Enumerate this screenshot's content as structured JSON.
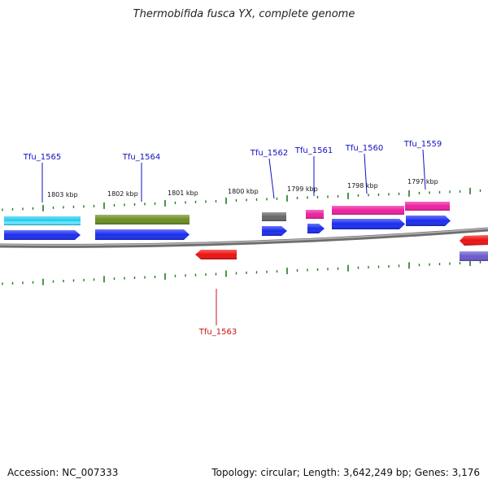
{
  "title": "Thermobifida fusca YX, complete genome",
  "footer": {
    "accession": "Accession: NC_007333",
    "summary": "Topology: circular; Length: 3,642,249 bp; Genes: 3,176"
  },
  "colors": {
    "backbone": "#8a8a8a",
    "tick": "#1f7a1f",
    "label_blue": "#1010c0",
    "label_red": "#d01010"
  },
  "kbp_labels": [
    {
      "text": "1803 kbp"
    },
    {
      "text": "1802 kbp"
    },
    {
      "text": "1801 kbp"
    },
    {
      "text": "1800 kbp"
    },
    {
      "text": "1799 kbp"
    },
    {
      "text": "1798 kbp"
    },
    {
      "text": "1797 kbp"
    }
  ],
  "genes": [
    {
      "name": "Tfu_1565",
      "strand": "+",
      "color": "#1a2cf0"
    },
    {
      "name": "Tfu_1564",
      "strand": "+",
      "color": "#1a2cf0"
    },
    {
      "name": "Tfu_1562",
      "strand": "+",
      "color": "#1a2cf0"
    },
    {
      "name": "Tfu_1561",
      "strand": "+",
      "color": "#1a2cf0"
    },
    {
      "name": "Tfu_1560",
      "strand": "+",
      "color": "#1a2cf0"
    },
    {
      "name": "Tfu_1559",
      "strand": "+",
      "color": "#1a2cf0"
    },
    {
      "name": "Tfu_1563",
      "strand": "-",
      "color": "#ee1111"
    }
  ],
  "category_bars": [
    {
      "gene": "Tfu_1565",
      "color": "#22c8f0"
    },
    {
      "gene": "Tfu_1564",
      "color": "#6b8e23"
    },
    {
      "gene": "Tfu_1562",
      "color": "#666666"
    },
    {
      "gene": "Tfu_1561",
      "color": "#ee1fa0"
    },
    {
      "gene": "Tfu_1560",
      "color": "#ee1fa0"
    },
    {
      "gene": "Tfu_1559",
      "color": "#ee1fa0"
    }
  ]
}
